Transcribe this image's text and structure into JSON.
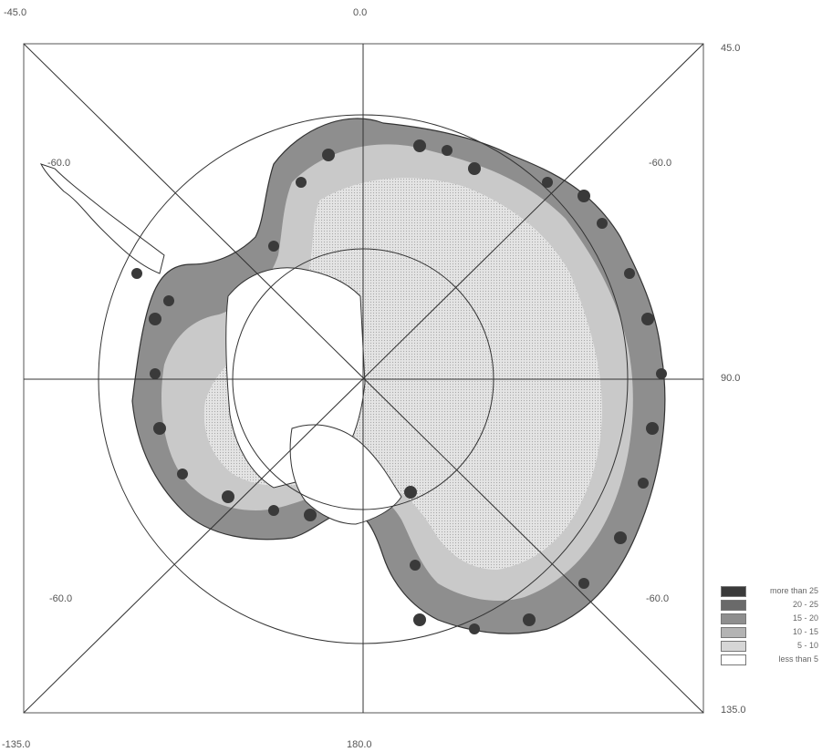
{
  "labels": {
    "top_left": "-45.0",
    "top_center": "0.0",
    "top_right": "45.0",
    "right_middle": "90.0",
    "bottom_right": "135.0",
    "bottom_center": "180.0",
    "bottom_left": "-135.0",
    "lat_upper_left": "-60.0",
    "lat_upper_right": "-60.0",
    "lat_lower_left": "-60.0",
    "lat_lower_right": "-60.0"
  },
  "legend": [
    {
      "label": "more than  25",
      "color": "#3a3a3a"
    },
    {
      "label": "20 - 25",
      "color": "#6a6a6a"
    },
    {
      "label": "15 - 20",
      "color": "#8e8e8e"
    },
    {
      "label": "10 - 15",
      "color": "#b3b3b3"
    },
    {
      "label": "5 - 10",
      "color": "#d6d6d6"
    },
    {
      "label": "less than  5",
      "color": "#ffffff"
    }
  ]
}
